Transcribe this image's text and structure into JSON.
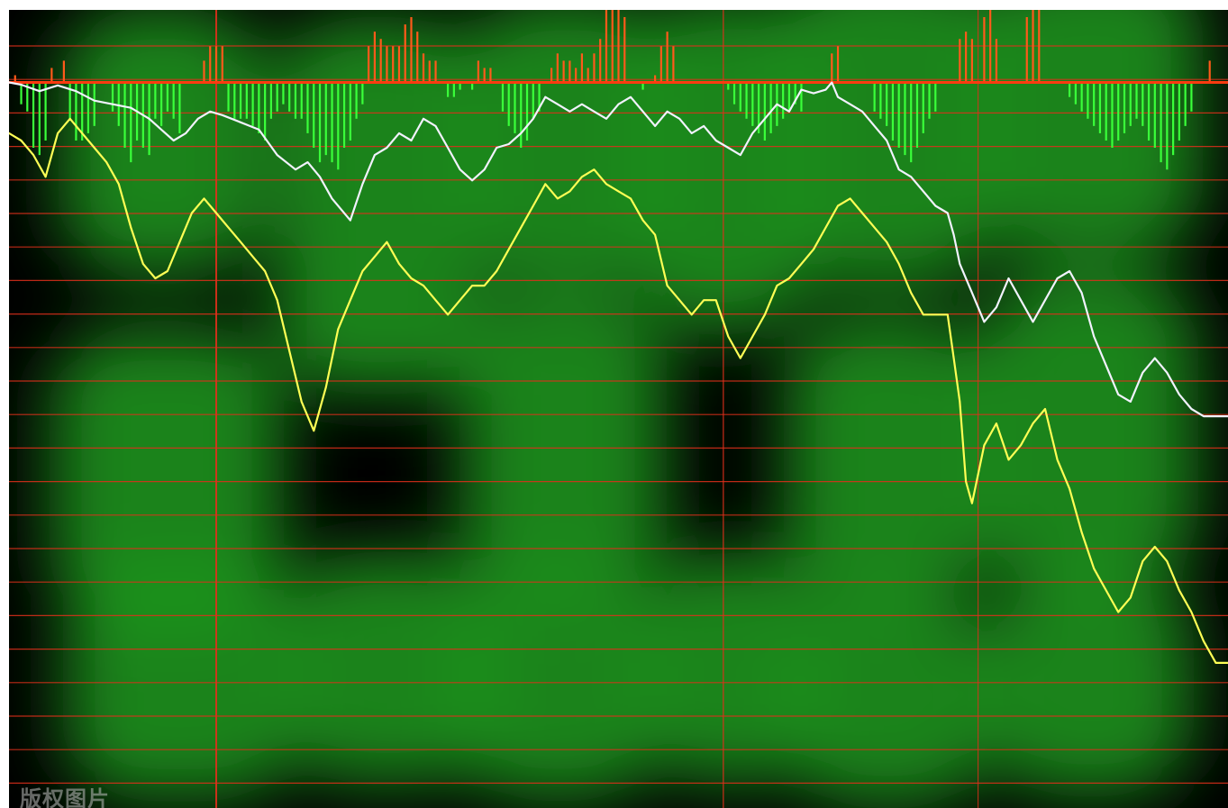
{
  "watermark": "版权图片",
  "colors": {
    "background": "#000000",
    "glow": "#1c9a1c",
    "grid": "#e0301c",
    "zero_line": "#ff3a10",
    "bar_positive": "#ff5a1a",
    "bar_negative": "#3aff3a",
    "line_upper": "#f2f2ff",
    "line_lower": "#ffff55"
  },
  "chart_data": {
    "type": "line",
    "x_range": [
      0,
      100
    ],
    "y_range": [
      -100,
      10
    ],
    "grid": true,
    "legend": "none",
    "series": [
      {
        "values": [
          [
            0,
            0
          ],
          [
            1,
            -0.3
          ],
          [
            2.5,
            -1.2
          ],
          [
            4,
            -0.4
          ],
          [
            5.5,
            -1.2
          ],
          [
            7,
            -2.5
          ],
          [
            8.5,
            -3
          ],
          [
            10,
            -3.5
          ],
          [
            11.5,
            -5
          ],
          [
            12.5,
            -6.5
          ],
          [
            13.5,
            -8
          ],
          [
            14.5,
            -7
          ],
          [
            15.5,
            -5
          ],
          [
            16.5,
            -4
          ],
          [
            17.5,
            -4.5
          ],
          [
            19,
            -5.5
          ],
          [
            20.5,
            -6.5
          ],
          [
            22,
            -10
          ],
          [
            23.5,
            -12
          ],
          [
            24.5,
            -11
          ],
          [
            25.5,
            -13
          ],
          [
            26.5,
            -16
          ],
          [
            28,
            -19
          ],
          [
            29,
            -14
          ],
          [
            30,
            -10
          ],
          [
            31,
            -9
          ],
          [
            32,
            -7
          ],
          [
            33,
            -8
          ],
          [
            34,
            -5
          ],
          [
            35,
            -6
          ],
          [
            36,
            -9
          ],
          [
            37,
            -12
          ],
          [
            38,
            -13.5
          ],
          [
            39,
            -12
          ],
          [
            40,
            -9
          ],
          [
            41,
            -8.5
          ],
          [
            42,
            -7
          ],
          [
            43,
            -5
          ],
          [
            44,
            -2
          ],
          [
            45,
            -3
          ],
          [
            46,
            -4
          ],
          [
            47,
            -3
          ],
          [
            48,
            -4
          ],
          [
            49,
            -5
          ],
          [
            50,
            -3
          ],
          [
            51,
            -2
          ],
          [
            52,
            -4
          ],
          [
            53,
            -6
          ],
          [
            54,
            -4
          ],
          [
            55,
            -5
          ],
          [
            56,
            -7
          ],
          [
            57,
            -6
          ],
          [
            58,
            -8
          ],
          [
            59,
            -9
          ],
          [
            60,
            -10
          ],
          [
            61,
            -7
          ],
          [
            62,
            -5
          ],
          [
            63,
            -3
          ],
          [
            64,
            -4
          ],
          [
            65,
            -1
          ],
          [
            66,
            -1.5
          ],
          [
            67,
            -1
          ],
          [
            67.5,
            0
          ],
          [
            68,
            -2
          ],
          [
            69,
            -3
          ],
          [
            70,
            -4
          ],
          [
            71,
            -6
          ],
          [
            72,
            -8
          ],
          [
            73,
            -12
          ],
          [
            74,
            -13
          ],
          [
            75,
            -15
          ],
          [
            76,
            -17
          ],
          [
            77,
            -18
          ],
          [
            77.5,
            -21
          ],
          [
            78,
            -25
          ],
          [
            79,
            -29
          ],
          [
            80,
            -33
          ],
          [
            81,
            -31
          ],
          [
            82,
            -27
          ],
          [
            83,
            -30
          ],
          [
            84,
            -33
          ],
          [
            85,
            -30
          ],
          [
            86,
            -27
          ],
          [
            87,
            -26
          ],
          [
            88,
            -29
          ],
          [
            89,
            -35
          ],
          [
            90,
            -39
          ],
          [
            91,
            -43
          ],
          [
            92,
            -44
          ],
          [
            93,
            -40
          ],
          [
            94,
            -38
          ],
          [
            95,
            -40
          ],
          [
            96,
            -43
          ],
          [
            97,
            -45
          ],
          [
            98,
            -46
          ],
          [
            100,
            -46
          ]
        ]
      },
      {
        "values": [
          [
            0,
            -7
          ],
          [
            1,
            -8
          ],
          [
            2,
            -10
          ],
          [
            3,
            -13
          ],
          [
            4,
            -7
          ],
          [
            5,
            -5
          ],
          [
            6,
            -7
          ],
          [
            7,
            -9
          ],
          [
            8,
            -11
          ],
          [
            9,
            -14
          ],
          [
            10,
            -20
          ],
          [
            11,
            -25
          ],
          [
            12,
            -27
          ],
          [
            13,
            -26
          ],
          [
            14,
            -22
          ],
          [
            15,
            -18
          ],
          [
            16,
            -16
          ],
          [
            17,
            -18
          ],
          [
            18,
            -20
          ],
          [
            19,
            -22
          ],
          [
            20,
            -24
          ],
          [
            21,
            -26
          ],
          [
            22,
            -30
          ],
          [
            23,
            -37
          ],
          [
            24,
            -44
          ],
          [
            25,
            -48
          ],
          [
            26,
            -42
          ],
          [
            27,
            -34
          ],
          [
            28,
            -30
          ],
          [
            29,
            -26
          ],
          [
            30,
            -24
          ],
          [
            31,
            -22
          ],
          [
            32,
            -25
          ],
          [
            33,
            -27
          ],
          [
            34,
            -28
          ],
          [
            35,
            -30
          ],
          [
            36,
            -32
          ],
          [
            37,
            -30
          ],
          [
            38,
            -28
          ],
          [
            39,
            -28
          ],
          [
            40,
            -26
          ],
          [
            41,
            -23
          ],
          [
            42,
            -20
          ],
          [
            43,
            -17
          ],
          [
            44,
            -14
          ],
          [
            45,
            -16
          ],
          [
            46,
            -15
          ],
          [
            47,
            -13
          ],
          [
            48,
            -12
          ],
          [
            49,
            -14
          ],
          [
            50,
            -15
          ],
          [
            51,
            -16
          ],
          [
            52,
            -19
          ],
          [
            53,
            -21
          ],
          [
            54,
            -28
          ],
          [
            55,
            -30
          ],
          [
            56,
            -32
          ],
          [
            57,
            -30
          ],
          [
            58,
            -30
          ],
          [
            59,
            -35
          ],
          [
            60,
            -38
          ],
          [
            61,
            -35
          ],
          [
            62,
            -32
          ],
          [
            63,
            -28
          ],
          [
            64,
            -27
          ],
          [
            65,
            -25
          ],
          [
            66,
            -23
          ],
          [
            67,
            -20
          ],
          [
            68,
            -17
          ],
          [
            69,
            -16
          ],
          [
            70,
            -18
          ],
          [
            71,
            -20
          ],
          [
            72,
            -22
          ],
          [
            73,
            -25
          ],
          [
            74,
            -29
          ],
          [
            75,
            -32
          ],
          [
            76,
            -32
          ],
          [
            77,
            -32
          ],
          [
            77.5,
            -38
          ],
          [
            78,
            -44
          ],
          [
            78.5,
            -55
          ],
          [
            79,
            -58
          ],
          [
            80,
            -50
          ],
          [
            81,
            -47
          ],
          [
            82,
            -52
          ],
          [
            83,
            -50
          ],
          [
            84,
            -47
          ],
          [
            85,
            -45
          ],
          [
            86,
            -52
          ],
          [
            87,
            -56
          ],
          [
            88,
            -62
          ],
          [
            89,
            -67
          ],
          [
            90,
            -70
          ],
          [
            91,
            -73
          ],
          [
            92,
            -71
          ],
          [
            93,
            -66
          ],
          [
            94,
            -64
          ],
          [
            95,
            -66
          ],
          [
            96,
            -70
          ],
          [
            97,
            -73
          ],
          [
            98,
            -77
          ],
          [
            99,
            -80
          ],
          [
            100,
            -80
          ]
        ]
      }
    ],
    "bars": {
      "x_start": 0.5,
      "x_step": 0.5,
      "values": [
        1,
        -3,
        -4,
        -9,
        -10,
        -8,
        2,
        0,
        3,
        -5,
        -8,
        -8,
        -7,
        -6,
        0,
        0,
        -4,
        -6,
        -9,
        -11,
        -8,
        -9,
        -10,
        -5,
        -6,
        -4,
        -5,
        -7,
        0,
        0,
        0,
        3,
        5,
        5,
        5,
        -4,
        -5,
        -5,
        -5,
        -6,
        -7,
        -8,
        -5,
        -4,
        -3,
        -4,
        -5,
        -5,
        -7,
        -9,
        -11,
        -10,
        -11,
        -12,
        -9,
        -8,
        -5,
        -3,
        5,
        7,
        6,
        5,
        5,
        5,
        8,
        9,
        7,
        4,
        3,
        3,
        0,
        -2,
        -2,
        -1,
        0,
        -1,
        3,
        2,
        2,
        0,
        -4,
        -6,
        -7,
        -9,
        -8,
        -5,
        -4,
        0,
        2,
        4,
        3,
        3,
        2,
        4,
        2,
        4,
        6,
        12,
        16,
        14,
        9,
        0,
        0,
        -1,
        0,
        1,
        5,
        7,
        5,
        0,
        0,
        0,
        0,
        0,
        0,
        0,
        0,
        -1,
        -3,
        -4,
        -5,
        -6,
        -7,
        -8,
        -7,
        -6,
        -5,
        -4,
        -3,
        -4,
        0,
        0,
        0,
        0,
        4,
        5,
        0,
        0,
        0,
        0,
        0,
        -4,
        -5,
        -6,
        -8,
        -9,
        -10,
        -11,
        -9,
        -7,
        -5,
        -4,
        0,
        0,
        0,
        6,
        7,
        6,
        0,
        9,
        13,
        6,
        0,
        0,
        0,
        0,
        9,
        11,
        13,
        0,
        0,
        0,
        0,
        -2,
        -3,
        -4,
        -5,
        -6,
        -7,
        -8,
        -9,
        -8,
        -7,
        -6,
        -5,
        -6,
        -8,
        -9,
        -11,
        -12,
        -10,
        -8,
        -6,
        -4,
        0,
        0,
        3,
        0,
        0,
        0,
        0,
        0,
        -2,
        -3,
        -4,
        -5,
        -6,
        -7,
        -8,
        -9,
        -10,
        -11,
        -12,
        -10,
        -8,
        -6,
        -4,
        -2,
        0,
        0,
        0,
        5,
        6,
        6,
        0,
        0,
        0,
        0,
        -2,
        -3,
        -4,
        -5,
        -6,
        -4,
        0,
        0,
        3,
        4,
        6,
        5,
        0,
        0,
        0,
        -4,
        -5,
        -6,
        -8,
        -9,
        -10,
        -9,
        -8,
        -5,
        -3,
        0,
        0,
        0,
        2,
        3,
        5,
        6,
        7,
        4,
        3,
        1,
        -1,
        -2,
        -2,
        -3,
        -2,
        0,
        0,
        4
      ]
    }
  }
}
